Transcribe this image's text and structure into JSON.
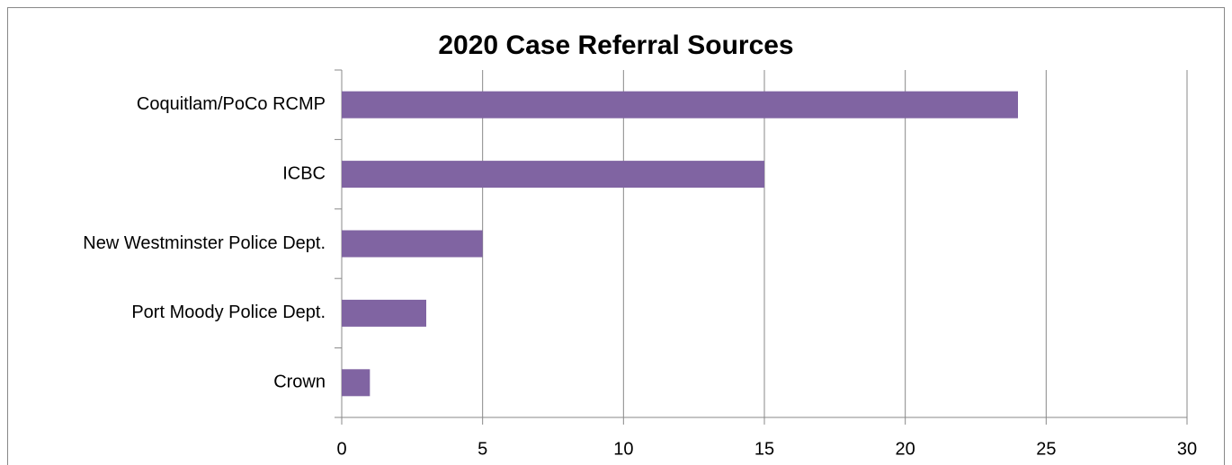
{
  "chart_data": {
    "type": "bar",
    "orientation": "horizontal",
    "title": "2020 Case Referral Sources",
    "categories": [
      "Coquitlam/PoCo RCMP",
      "ICBC",
      "New Westminster Police Dept.",
      "Port Moody Police Dept.",
      "Crown"
    ],
    "values": [
      24,
      15,
      5,
      3,
      1
    ],
    "color": "#8064a2",
    "xlim": [
      0,
      30
    ],
    "xticks": [
      0,
      5,
      10,
      15,
      20,
      25,
      30
    ],
    "grid": true
  }
}
